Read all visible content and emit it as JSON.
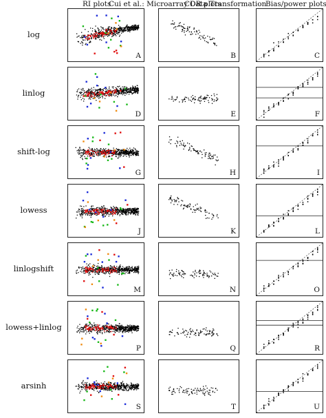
{
  "headers": {
    "ri": "RI plots",
    "title": "Cui et al.: Microarray Data Transformation",
    "cor": "COR plots",
    "bias": "Bias/power plots"
  },
  "rows": [
    {
      "label": "log",
      "panels": [
        "A",
        "B",
        "C"
      ]
    },
    {
      "label": "linlog",
      "panels": [
        "D",
        "E",
        "F"
      ]
    },
    {
      "label": "shift-log",
      "panels": [
        "G",
        "H",
        "I"
      ]
    },
    {
      "label": "lowess",
      "panels": [
        "J",
        "K",
        "L"
      ]
    },
    {
      "label": "linlogshift",
      "panels": [
        "M",
        "N",
        "O"
      ]
    },
    {
      "label": "lowess+linlog",
      "panels": [
        "P",
        "Q",
        "R"
      ]
    },
    {
      "label": "arsinh",
      "panels": [
        "S",
        "T",
        "U"
      ]
    }
  ],
  "colors": {
    "dense": "#000000",
    "red": "#e01010",
    "blue": "#1a2ad8",
    "green": "#18b818",
    "orange": "#f08a10"
  }
}
